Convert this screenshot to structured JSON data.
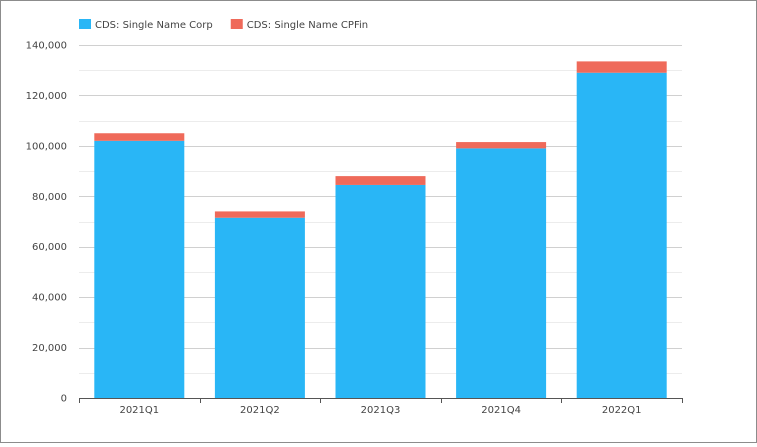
{
  "chart_data": {
    "type": "bar",
    "stacked": true,
    "categories": [
      "2021Q1",
      "2021Q2",
      "2021Q3",
      "2021Q4",
      "2022Q1"
    ],
    "series": [
      {
        "name": "CDS: Single Name Corp",
        "color": "#29b6f6",
        "values": [
          102000,
          71500,
          84500,
          99000,
          129000
        ]
      },
      {
        "name": "CDS: Single Name CPFin",
        "color": "#ef6a5a",
        "values": [
          3000,
          2500,
          3500,
          2500,
          4500
        ]
      }
    ],
    "ylim": [
      0,
      140000
    ],
    "yticks": [
      0,
      20000,
      40000,
      60000,
      80000,
      100000,
      120000,
      140000
    ],
    "ytick_labels": [
      "0",
      "20,000",
      "40,000",
      "60,000",
      "80,000",
      "100,000",
      "120,000",
      "140,000"
    ],
    "grid": true,
    "legend": "top-left",
    "xlabel": "",
    "ylabel": ""
  }
}
